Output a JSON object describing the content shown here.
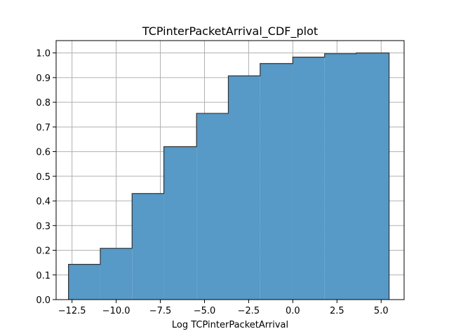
{
  "chart_data": {
    "type": "bar",
    "title": "TCPinterPacketArrival_CDF_plot",
    "xlabel": "Log TCPinterPacketArrival",
    "ylabel": "",
    "xlim": [
      -13.4,
      6.3
    ],
    "ylim": [
      0.0,
      1.05
    ],
    "xticks": [
      -12.5,
      -10.0,
      -7.5,
      -5.0,
      -2.5,
      0.0,
      2.5,
      5.0
    ],
    "xtick_labels": [
      "−12.5",
      "−10.0",
      "−7.5",
      "−5.0",
      "−2.5",
      "0.0",
      "2.5",
      "5.0"
    ],
    "yticks": [
      0.0,
      0.1,
      0.2,
      0.3,
      0.4,
      0.5,
      0.6,
      0.7,
      0.8,
      0.9,
      1.0
    ],
    "ytick_labels": [
      "0.0",
      "0.1",
      "0.2",
      "0.3",
      "0.4",
      "0.5",
      "0.6",
      "0.7",
      "0.8",
      "0.9",
      "1.0"
    ],
    "grid": true,
    "bin_edges": [
      -12.7,
      -10.9,
      -9.1,
      -7.3,
      -5.45,
      -3.65,
      -1.85,
      0.0,
      1.8,
      3.6,
      5.45
    ],
    "values": [
      0.143,
      0.208,
      0.43,
      0.62,
      0.755,
      0.907,
      0.957,
      0.983,
      0.997,
      1.0
    ],
    "colors": {
      "fill": "#5799c7",
      "edge": "#333333"
    }
  }
}
